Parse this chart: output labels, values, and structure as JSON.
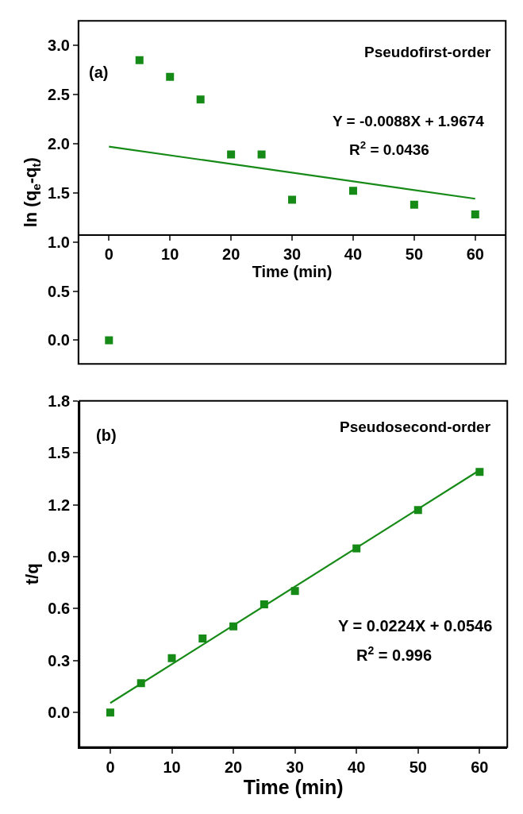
{
  "chart_data": [
    {
      "type": "scatter",
      "xlabel": "Time (min)",
      "ylabel": "ln (q$_{e}$-q$_{t}$)",
      "annotations": [
        "(a)",
        "Pseudofirst-order",
        "Y = -0.0088X + 1.9674",
        "R$^{2}$ = 0.0436"
      ],
      "series": [
        {
          "marker": "square",
          "color": "#168a16",
          "x": [
            0,
            5,
            10,
            15,
            20,
            25,
            30,
            40,
            50,
            60
          ],
          "values": [
            0.0,
            2.85,
            2.68,
            2.45,
            1.89,
            1.89,
            1.43,
            1.52,
            1.38,
            1.28
          ]
        },
        {
          "type": "line",
          "marker": "none",
          "line_style": "solid",
          "color": "#168a16",
          "x": [
            0,
            60
          ],
          "values": [
            1.97,
            1.44
          ]
        }
      ],
      "xlim": [
        -5,
        65
      ],
      "xticks": [
        0,
        10,
        20,
        30,
        40,
        50,
        60
      ],
      "ylim": [
        -0.24,
        3.25
      ],
      "yticks": [
        {
          "value": 0,
          "label": "0.0"
        },
        {
          "value": 0.5,
          "label": "0.5"
        },
        {
          "value": 1,
          "label": "1.0"
        },
        {
          "value": 1.5,
          "label": "1.5"
        },
        {
          "value": 2,
          "label": "2.0"
        },
        {
          "value": 2.5,
          "label": "2.5"
        },
        {
          "value": 3,
          "label": "3.0"
        }
      ]
    },
    {
      "type": "scatter",
      "xlabel": "Time (min)",
      "ylabel": "t/q",
      "annotations": [
        "(b)",
        "Pseudosecond-order",
        "Y = 0.0224X + 0.0546",
        "R$^{2}$ = 0.996"
      ],
      "series": [
        {
          "marker": "square",
          "color": "#168a16",
          "x": [
            0,
            5,
            10,
            15,
            20,
            25,
            30,
            40,
            50,
            60
          ],
          "values": [
            0.0,
            0.17,
            0.314,
            0.428,
            0.498,
            0.625,
            0.702,
            0.948,
            1.17,
            1.39
          ]
        },
        {
          "type": "line",
          "marker": "none",
          "line_style": "solid",
          "color": "#168a16",
          "x": [
            0,
            60
          ],
          "values": [
            0.055,
            1.4
          ]
        }
      ],
      "xlim": [
        -5,
        64.5
      ],
      "xticks": [
        0,
        10,
        20,
        30,
        40,
        50,
        60
      ],
      "ylim": [
        -0.2,
        1.8
      ],
      "yticks": [
        {
          "value": 0,
          "label": "0.0"
        },
        {
          "value": 0.3,
          "label": "0.3"
        },
        {
          "value": 0.6,
          "label": "0.6"
        },
        {
          "value": 0.9,
          "label": "0.9"
        },
        {
          "value": 1.2,
          "label": "1.2"
        },
        {
          "value": 1.5,
          "label": "1.5"
        },
        {
          "value": 1.8,
          "label": "1.8"
        }
      ]
    }
  ]
}
